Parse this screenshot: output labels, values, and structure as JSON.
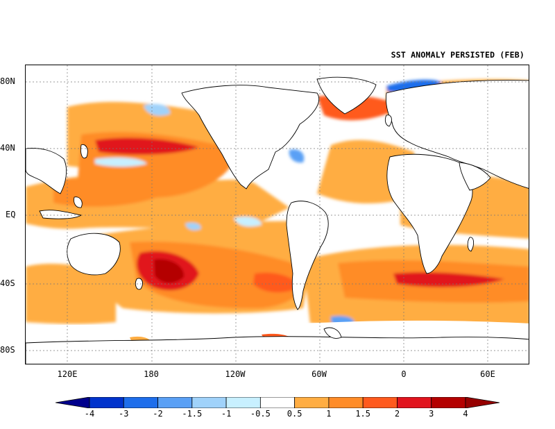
{
  "title": "SST ANOMALY PERSISTED (FEB)",
  "lat_labels": [
    "80N",
    "40N",
    "EQ",
    "40S",
    "80S"
  ],
  "lon_labels": [
    "120E",
    "180",
    "120W",
    "60W",
    "0",
    "60E"
  ],
  "colorbar": {
    "labels": [
      "-4",
      "-3",
      "-2",
      "-1.5",
      "-1",
      "-0.5",
      "0.5",
      "1",
      "1.5",
      "2",
      "3",
      "4"
    ],
    "colors": [
      "#00008c",
      "#0033cc",
      "#1e6eeb",
      "#5aa0f5",
      "#a0d2fa",
      "#c8f0ff",
      "#ffffff",
      "#ffad42",
      "#ff8c28",
      "#ff5a1e",
      "#e1141e",
      "#b40000",
      "#960000"
    ]
  }
}
